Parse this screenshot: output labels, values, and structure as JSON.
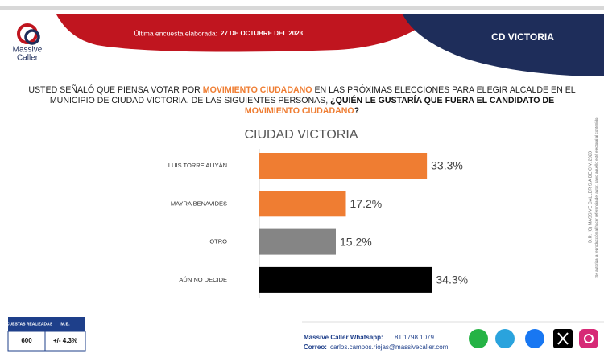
{
  "header": {
    "brand_line1": "Massive",
    "brand_line2": "Caller",
    "survey_label": "Última encuesta elaborada:",
    "survey_date": "27 DE OCTUBRE  DEL 2023",
    "location": "CD VICTORIA"
  },
  "question": [
    "USTED SEÑALÓ QUE PIENSA VOTAR POR ",
    "MOVIMIENTO CIUDADANO",
    "  EN LAS PRÓXIMAS ELECCIONES PARA ELEGIR ALCALDE EN EL MUNICIPIO DE CIUDAD VICTORIA. DE LAS SIGUIENTES PERSONAS, ",
    "¿QUIÉN LE GUSTARÍA QUE FUERA EL CANDIDATO DE ",
    "MOVIMIENTO CIUDADANO",
    "?"
  ],
  "chart_data": {
    "type": "bar",
    "orientation": "horizontal",
    "title": "CIUDAD VICTORIA",
    "categories": [
      "LUIS TORRE ALIYÁN",
      "MAYRA BENAVIDES",
      "OTRO",
      "AÚN NO DECIDE"
    ],
    "values": [
      33.3,
      17.2,
      15.2,
      34.3
    ],
    "value_labels": [
      "33.3%",
      "17.2%",
      "15.2%",
      "34.3%"
    ],
    "colors": [
      "#ef7d32",
      "#ef7d32",
      "#858585",
      "#000000"
    ]
  },
  "side_note": [
    "D.R. (C) MASSIVE CALLER S.A DE C.V. 2023",
    "Se autoriza la reproducción al hacer referencia del autor, salvo aquello esté electoral al contenido."
  ],
  "stats": {
    "headers": [
      "ENCUESTAS REALIZADAS",
      "M.E."
    ],
    "values": [
      "600",
      "+/- 4.3%"
    ]
  },
  "footer": {
    "whatsapp_label": "Massive Caller Whatsapp:",
    "whatsapp": "81 1798 1079",
    "email_label": "Correo:",
    "email": "carlos.campos.riojas@massivecaller.com"
  }
}
